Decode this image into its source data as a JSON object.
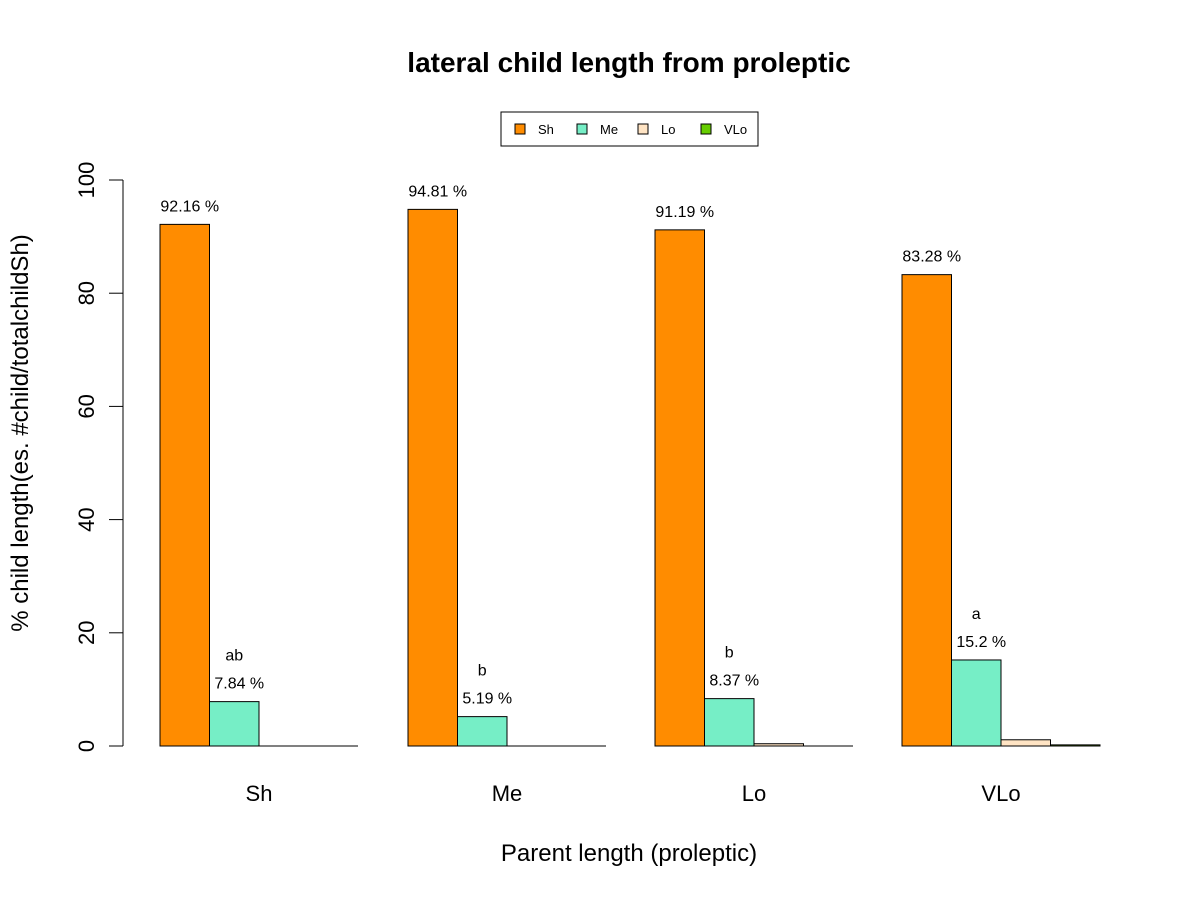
{
  "chart_data": {
    "type": "bar",
    "title": "lateral child length from proleptic",
    "xlabel": "Parent length (proleptic)",
    "ylabel": "% child length(es. #child/totalchildSh)",
    "ylim": [
      0,
      100
    ],
    "yticks": [
      0,
      20,
      40,
      60,
      80,
      100
    ],
    "categories": [
      "Sh",
      "Me",
      "Lo",
      "VLo"
    ],
    "series": [
      {
        "name": "Sh",
        "color": "#ff8c00",
        "values": [
          92.16,
          94.81,
          91.19,
          83.28
        ]
      },
      {
        "name": "Me",
        "color": "#76eec6",
        "values": [
          7.84,
          5.19,
          8.37,
          15.2
        ]
      },
      {
        "name": "Lo",
        "color": "#ffe4c4",
        "values": [
          0,
          0,
          0.4,
          1.1
        ]
      },
      {
        "name": "VLo",
        "color": "#66cd00",
        "values": [
          0,
          0,
          0,
          0.2
        ]
      }
    ],
    "data_labels": [
      {
        "category": "Sh",
        "series": "Sh",
        "text": "92.16 %"
      },
      {
        "category": "Sh",
        "series": "Me",
        "text": "7.84 %"
      },
      {
        "category": "Me",
        "series": "Sh",
        "text": "94.81 %"
      },
      {
        "category": "Me",
        "series": "Me",
        "text": "5.19 %"
      },
      {
        "category": "Lo",
        "series": "Sh",
        "text": "91.19 %"
      },
      {
        "category": "Lo",
        "series": "Me",
        "text": "8.37 %"
      },
      {
        "category": "VLo",
        "series": "Sh",
        "text": "83.28 %"
      },
      {
        "category": "VLo",
        "series": "Me",
        "text": "15.2 %"
      }
    ],
    "annotations": [
      {
        "category": "Sh",
        "series": "Me",
        "text": "ab"
      },
      {
        "category": "Me",
        "series": "Me",
        "text": "b"
      },
      {
        "category": "Lo",
        "series": "Me",
        "text": "b"
      },
      {
        "category": "VLo",
        "series": "Me",
        "text": "a"
      }
    ],
    "legend": {
      "position": "top",
      "orientation": "horizontal",
      "entries": [
        "Sh",
        "Me",
        "Lo",
        "VLo"
      ]
    },
    "grid": false
  }
}
